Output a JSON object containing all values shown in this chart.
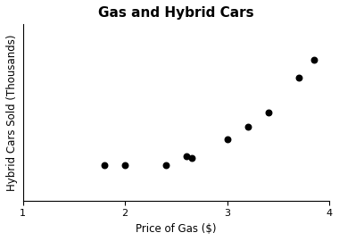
{
  "title": "Gas and Hybrid Cars",
  "xlabel": "Price of Gas ($)",
  "ylabel": "Hybrid Cars Sold (Thousands)",
  "x": [
    1.8,
    2.0,
    2.4,
    2.6,
    2.65,
    3.0,
    3.2,
    3.4,
    3.7,
    3.85
  ],
  "y": [
    20,
    20,
    20,
    25,
    24,
    35,
    42,
    50,
    70,
    80
  ],
  "xlim": [
    1,
    4
  ],
  "ylim": [
    0,
    100
  ],
  "xticks": [
    1,
    2,
    3,
    4
  ],
  "marker": "o",
  "marker_color": "black",
  "marker_size": 22,
  "bg_color": "white",
  "title_fontsize": 11,
  "label_fontsize": 8.5,
  "tick_fontsize": 8
}
